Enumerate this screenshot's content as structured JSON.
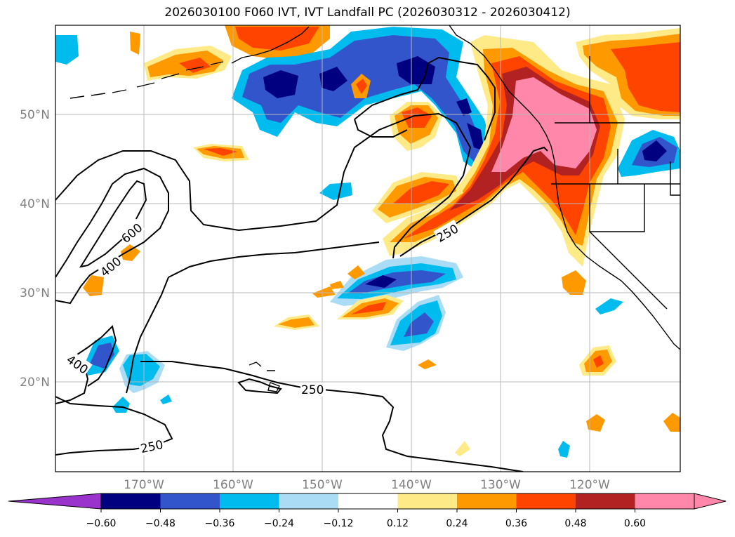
{
  "title": "2026030100 F060 IVT, IVT Landfall PC (2026030312 - 2026030412)",
  "map": {
    "lon_labels": [
      "170°W",
      "160°W",
      "150°W",
      "140°W",
      "130°W",
      "120°W"
    ],
    "lat_labels": [
      "50°N",
      "40°N",
      "30°N",
      "20°N"
    ],
    "contour_labels": [
      {
        "id": "c600",
        "text": "600"
      },
      {
        "id": "c400a",
        "text": "400"
      },
      {
        "id": "c400b",
        "text": "400"
      },
      {
        "id": "c250a",
        "text": "250"
      },
      {
        "id": "c250b",
        "text": "250"
      },
      {
        "id": "c250c",
        "text": "250"
      }
    ]
  },
  "colorbar": {
    "ticks": [
      "−0.60",
      "−0.48",
      "−0.36",
      "−0.24",
      "−0.12",
      "0.12",
      "0.24",
      "0.36",
      "0.48",
      "0.60"
    ],
    "colors": [
      "#9933cc",
      "#000080",
      "#3355cc",
      "#00bbee",
      "#aaddf5",
      "#ffffff",
      "#ffea88",
      "#ff9900",
      "#ff4400",
      "#b22222",
      "#ff88aa",
      "#ff88aa"
    ]
  },
  "palette": {
    "neg_strong": "#000080",
    "neg_mid": "#3355cc",
    "neg_weak": "#00bbee",
    "neg_faint": "#aaddf5",
    "pos_faint": "#ffea88",
    "pos_weak": "#ff9900",
    "pos_mid": "#ff4400",
    "pos_strong": "#b22222",
    "pos_max": "#ff88aa"
  }
}
